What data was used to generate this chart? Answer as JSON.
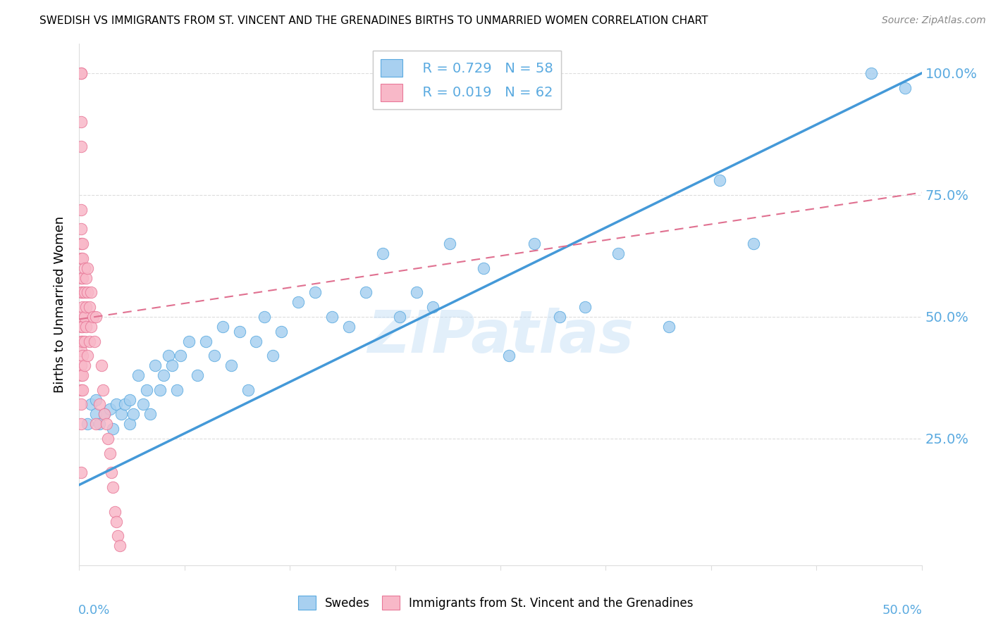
{
  "title": "SWEDISH VS IMMIGRANTS FROM ST. VINCENT AND THE GRENADINES BIRTHS TO UNMARRIED WOMEN CORRELATION CHART",
  "source": "Source: ZipAtlas.com",
  "ylabel": "Births to Unmarried Women",
  "xlim": [
    0.0,
    0.5
  ],
  "ylim": [
    -0.01,
    1.06
  ],
  "color_blue": "#a8d0f0",
  "color_blue_edge": "#5aaae0",
  "color_blue_line": "#4499d8",
  "color_pink": "#f8b8c8",
  "color_pink_edge": "#e87898",
  "color_pink_line": "#e07090",
  "color_axis_text": "#5aaae0",
  "grid_color": "#dddddd",
  "ytick_positions": [
    0.0,
    0.25,
    0.5,
    0.75,
    1.0
  ],
  "ytick_labels": [
    "",
    "25.0%",
    "50.0%",
    "75.0%",
    "100.0%"
  ],
  "xtick_label_left": "0.0%",
  "xtick_label_right": "50.0%",
  "legend_line1": "R = 0.729   N = 58",
  "legend_line2": "R = 0.019   N = 62",
  "bottom_label1": "Swedes",
  "bottom_label2": "Immigrants from St. Vincent and the Grenadines",
  "watermark": "ZIPatlas",
  "blue_x": [
    0.005,
    0.007,
    0.01,
    0.01,
    0.012,
    0.015,
    0.018,
    0.02,
    0.022,
    0.025,
    0.027,
    0.03,
    0.03,
    0.032,
    0.035,
    0.038,
    0.04,
    0.042,
    0.045,
    0.048,
    0.05,
    0.053,
    0.055,
    0.058,
    0.06,
    0.065,
    0.07,
    0.075,
    0.08,
    0.085,
    0.09,
    0.095,
    0.1,
    0.105,
    0.11,
    0.115,
    0.12,
    0.13,
    0.14,
    0.15,
    0.16,
    0.17,
    0.18,
    0.19,
    0.2,
    0.21,
    0.22,
    0.24,
    0.255,
    0.27,
    0.285,
    0.3,
    0.32,
    0.35,
    0.38,
    0.4,
    0.47,
    0.49
  ],
  "blue_y": [
    0.28,
    0.32,
    0.3,
    0.33,
    0.28,
    0.3,
    0.31,
    0.27,
    0.32,
    0.3,
    0.32,
    0.28,
    0.33,
    0.3,
    0.38,
    0.32,
    0.35,
    0.3,
    0.4,
    0.35,
    0.38,
    0.42,
    0.4,
    0.35,
    0.42,
    0.45,
    0.38,
    0.45,
    0.42,
    0.48,
    0.4,
    0.47,
    0.35,
    0.45,
    0.5,
    0.42,
    0.47,
    0.53,
    0.55,
    0.5,
    0.48,
    0.55,
    0.63,
    0.5,
    0.55,
    0.52,
    0.65,
    0.6,
    0.42,
    0.65,
    0.5,
    0.52,
    0.63,
    0.48,
    0.78,
    0.65,
    1.0,
    0.97
  ],
  "pink_x": [
    0.001,
    0.001,
    0.001,
    0.001,
    0.001,
    0.001,
    0.001,
    0.001,
    0.001,
    0.001,
    0.001,
    0.001,
    0.001,
    0.001,
    0.001,
    0.001,
    0.001,
    0.001,
    0.001,
    0.001,
    0.002,
    0.002,
    0.002,
    0.002,
    0.002,
    0.002,
    0.002,
    0.002,
    0.002,
    0.002,
    0.003,
    0.003,
    0.003,
    0.003,
    0.003,
    0.004,
    0.004,
    0.004,
    0.005,
    0.005,
    0.005,
    0.006,
    0.006,
    0.007,
    0.007,
    0.008,
    0.009,
    0.01,
    0.01,
    0.012,
    0.013,
    0.014,
    0.015,
    0.016,
    0.017,
    0.018,
    0.019,
    0.02,
    0.021,
    0.022,
    0.023,
    0.024
  ],
  "pink_y": [
    1.0,
    1.0,
    0.9,
    0.85,
    0.72,
    0.68,
    0.65,
    0.62,
    0.58,
    0.55,
    0.5,
    0.48,
    0.45,
    0.43,
    0.4,
    0.38,
    0.35,
    0.32,
    0.28,
    0.18,
    0.65,
    0.62,
    0.58,
    0.55,
    0.52,
    0.48,
    0.45,
    0.42,
    0.38,
    0.35,
    0.6,
    0.55,
    0.5,
    0.45,
    0.4,
    0.58,
    0.52,
    0.48,
    0.6,
    0.55,
    0.42,
    0.52,
    0.45,
    0.55,
    0.48,
    0.5,
    0.45,
    0.5,
    0.28,
    0.32,
    0.4,
    0.35,
    0.3,
    0.28,
    0.25,
    0.22,
    0.18,
    0.15,
    0.1,
    0.08,
    0.05,
    0.03
  ],
  "blue_line_x0": 0.0,
  "blue_line_y0": 0.155,
  "blue_line_x1": 0.5,
  "blue_line_y1": 1.0,
  "pink_line_x0": 0.0,
  "pink_line_y0": 0.495,
  "pink_line_x1": 0.5,
  "pink_line_y1": 0.755
}
